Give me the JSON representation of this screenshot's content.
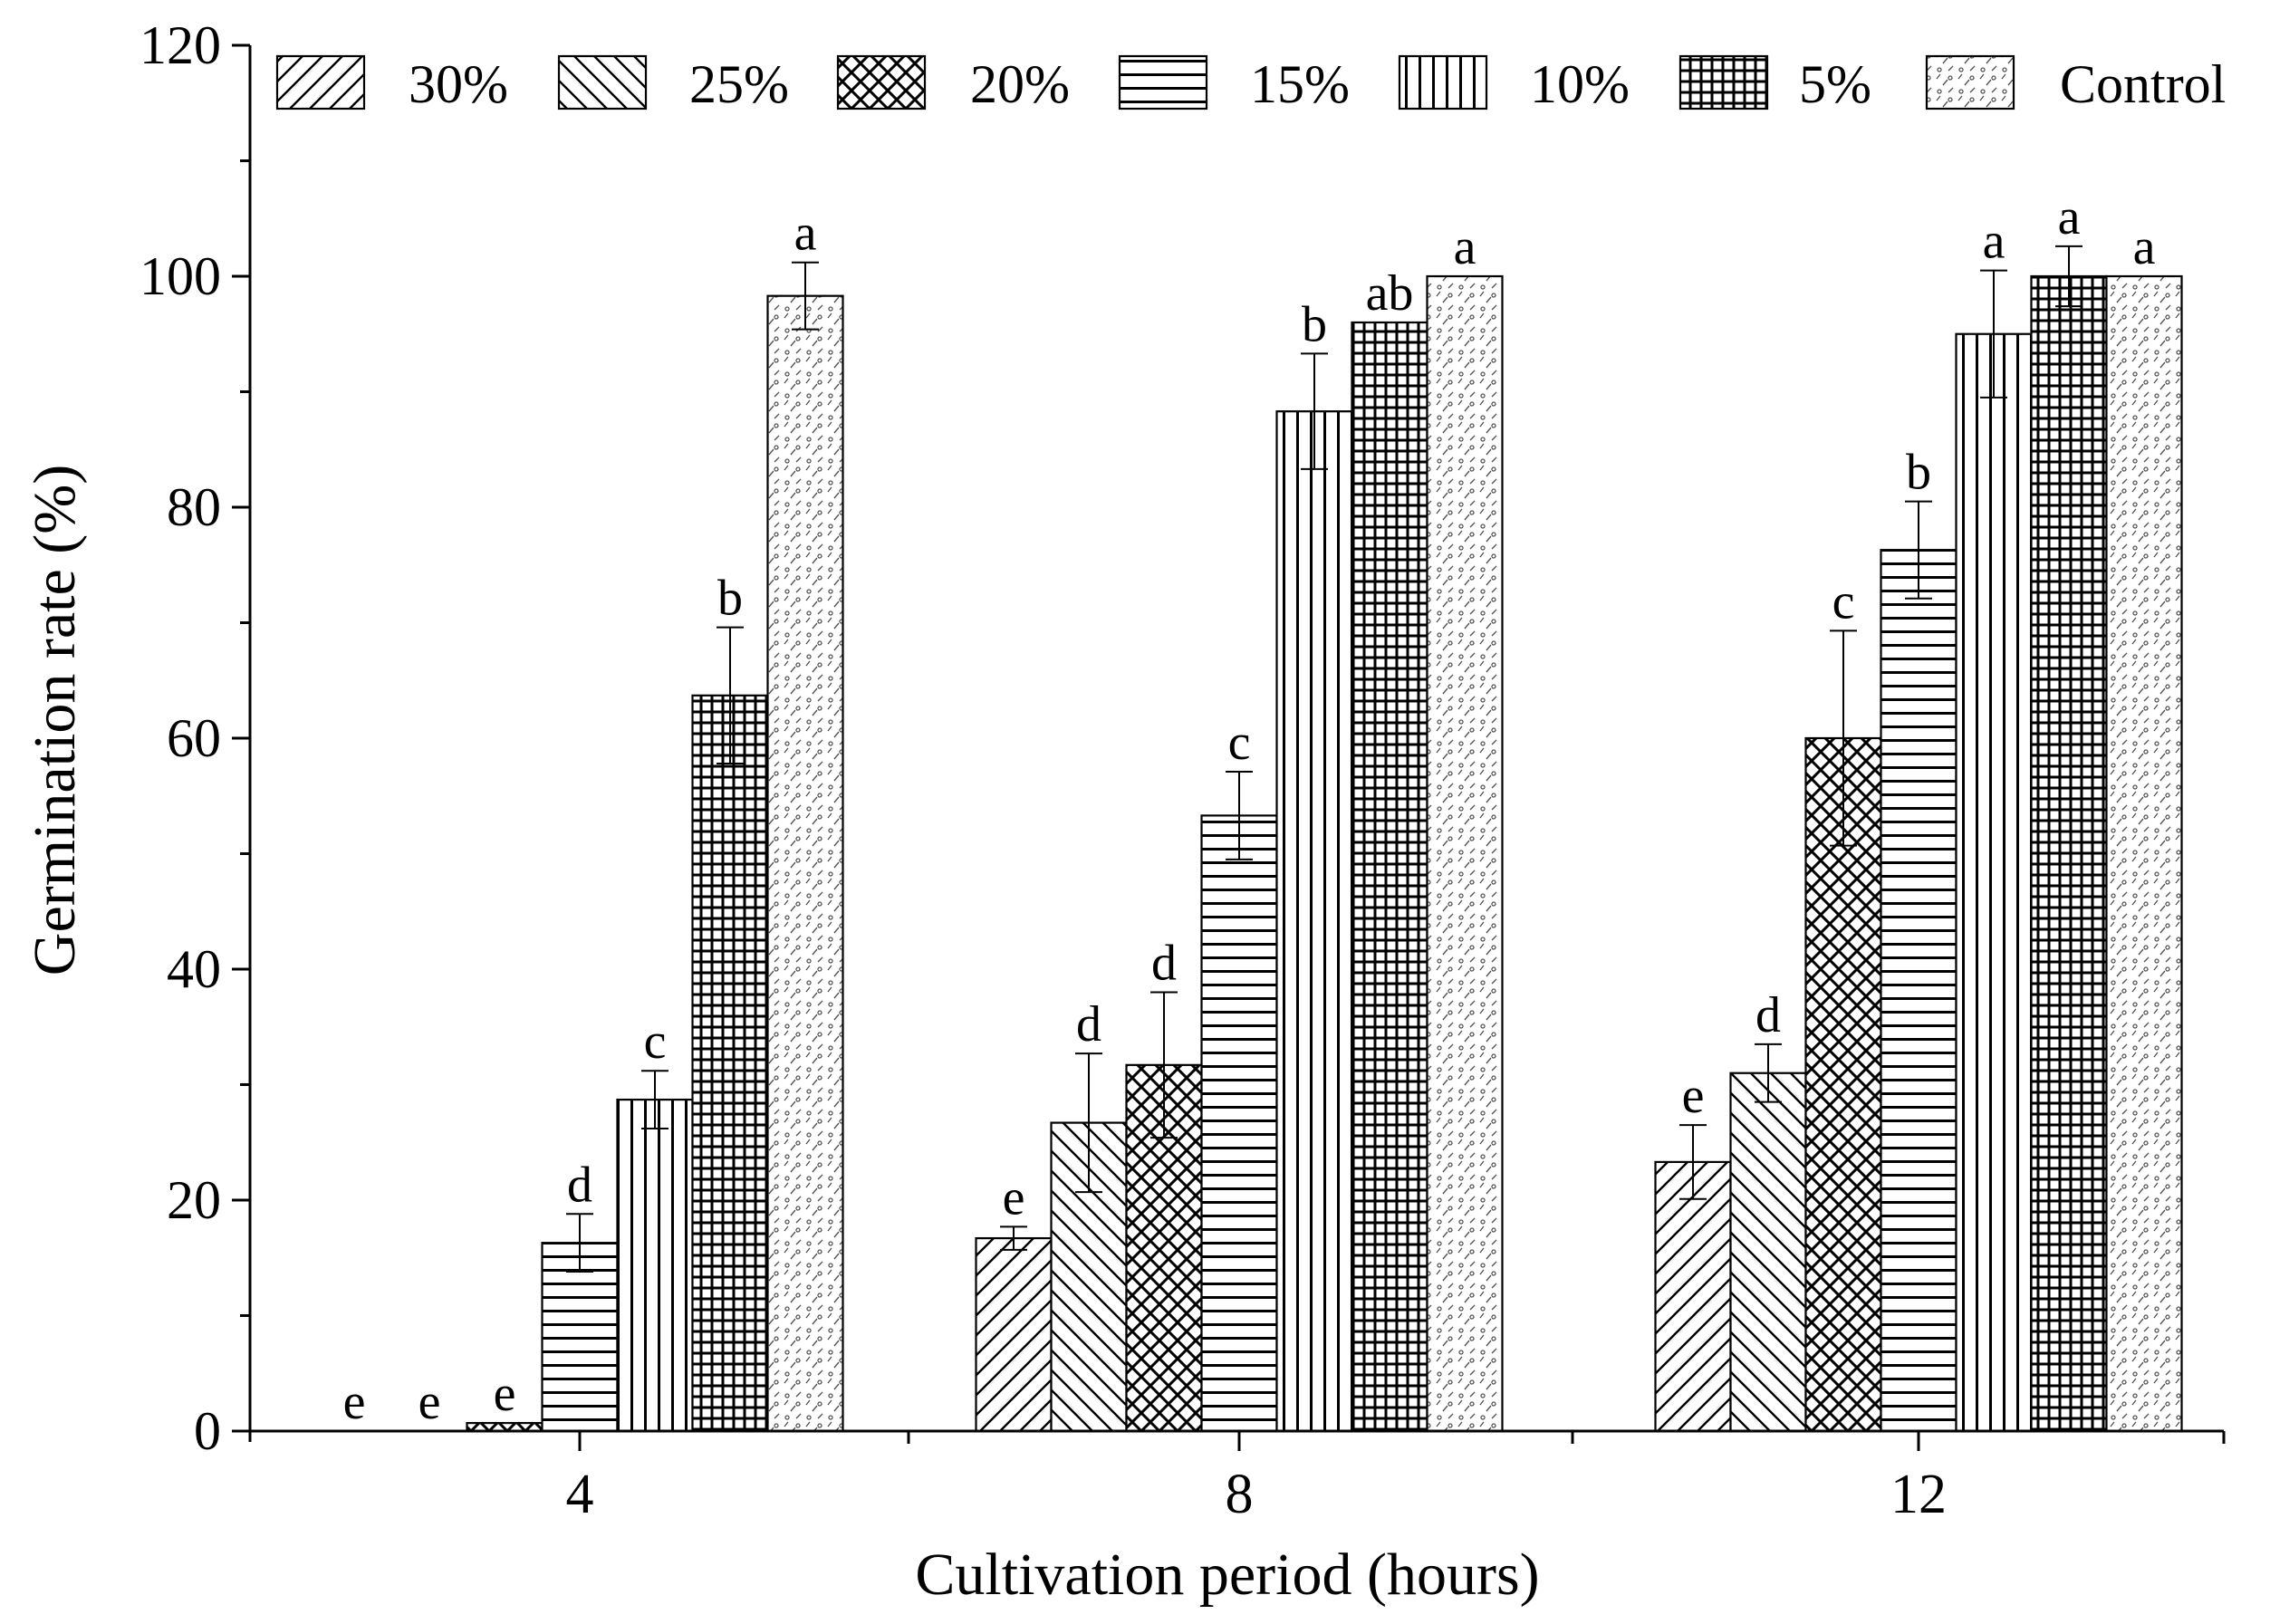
{
  "chart_data": {
    "type": "bar",
    "title": "",
    "xlabel": "Cultivation period (hours)",
    "ylabel": "Germination rate (%)",
    "ylim": [
      0,
      120
    ],
    "yticks": [
      "0",
      "20",
      "40",
      "60",
      "80",
      "100",
      "120"
    ],
    "categories": [
      "4",
      "8",
      "12"
    ],
    "legend_position": "top",
    "series": [
      {
        "name": "30%",
        "pattern": "diag-up",
        "values": [
          0,
          16.7,
          23.3
        ],
        "errors": [
          0,
          1.0,
          3.2
        ],
        "letters": [
          "e",
          "e",
          "e"
        ]
      },
      {
        "name": "25%",
        "pattern": "diag-down",
        "values": [
          0,
          26.7,
          31.0
        ],
        "errors": [
          0,
          6.0,
          2.5
        ],
        "letters": [
          "e",
          "d",
          "d"
        ]
      },
      {
        "name": "20%",
        "pattern": "crosshatch",
        "values": [
          0.7,
          31.7,
          60.0
        ],
        "errors": [
          0,
          6.3,
          9.3
        ],
        "letters": [
          "e",
          "d",
          "c"
        ]
      },
      {
        "name": "15%",
        "pattern": "horizontal",
        "values": [
          16.3,
          53.3,
          76.3
        ],
        "errors": [
          2.5,
          3.8,
          4.2
        ],
        "letters": [
          "d",
          "c",
          "b"
        ]
      },
      {
        "name": "10%",
        "pattern": "vertical",
        "values": [
          28.7,
          88.3,
          95.0
        ],
        "errors": [
          2.5,
          5.0,
          5.5
        ],
        "letters": [
          "c",
          "b",
          "a"
        ]
      },
      {
        "name": "5%",
        "pattern": "grid",
        "values": [
          63.7,
          96.0,
          100.0
        ],
        "errors": [
          5.9,
          0,
          2.6
        ],
        "letters": [
          "b",
          "ab",
          "a"
        ]
      },
      {
        "name": "Control",
        "pattern": "dots",
        "values": [
          98.3,
          100.0,
          100.0
        ],
        "errors": [
          2.9,
          0,
          0
        ],
        "letters": [
          "a",
          "a",
          "a"
        ]
      }
    ]
  }
}
